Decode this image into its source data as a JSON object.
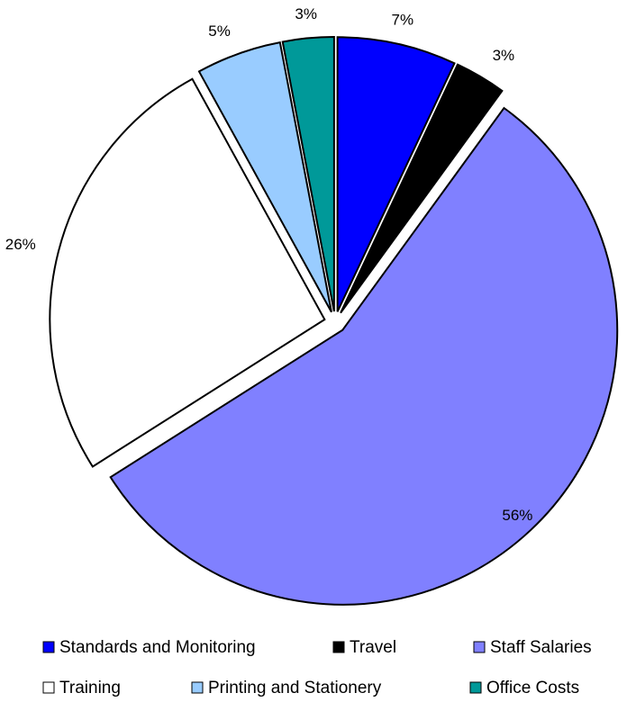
{
  "chart_data": {
    "type": "pie",
    "categories": [
      "Standards and Monitoring",
      "Travel",
      "Staff Salaries",
      "Training",
      "Printing and Stationery",
      "Office Costs"
    ],
    "values": [
      7,
      3,
      56,
      26,
      5,
      3
    ],
    "value_labels": [
      "7%",
      "3%",
      "56%",
      "26%",
      "5%",
      "3%"
    ],
    "colors": [
      "#0000ff",
      "#000000",
      "#8080ff",
      "#ffffff",
      "#99ccff",
      "#009999"
    ],
    "legend": "bottom"
  }
}
